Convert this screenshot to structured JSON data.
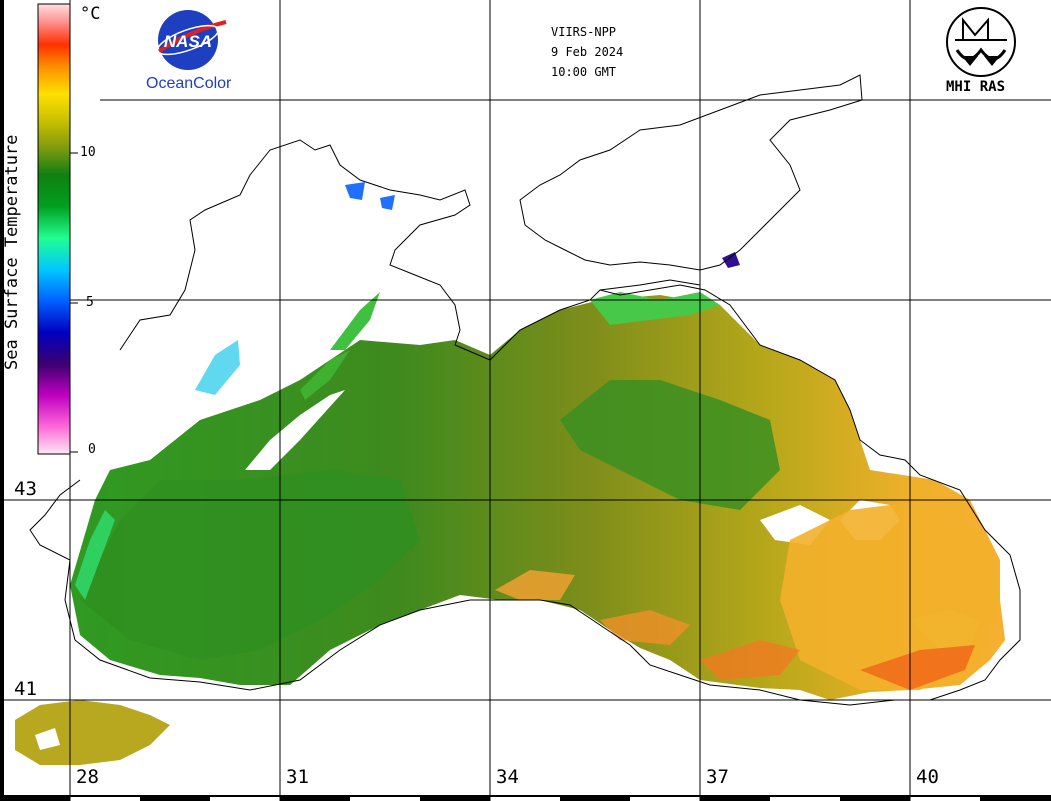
{
  "header": {
    "sensor": "VIIRS-NPP",
    "date": "9 Feb 2024",
    "time": "10:00 GMT"
  },
  "logos": {
    "nasa_mark": "NASA",
    "nasa_program": "OceanColor",
    "institute": "MHI RAS"
  },
  "colorbar": {
    "title": "Sea Surface Temperature",
    "unit": "°C",
    "ticks": [
      "10",
      "5",
      "0"
    ],
    "colors": [
      "#ffe8f4",
      "#ff6ad8",
      "#c000c0",
      "#3c0070",
      "#0000c0",
      "#0060ff",
      "#00c8ff",
      "#20ff90",
      "#00a020",
      "#108010",
      "#7f9a10",
      "#c8c000",
      "#ffe000",
      "#ff9000",
      "#ff3000",
      "#ff9090",
      "#ffe0e0"
    ]
  },
  "grid": {
    "longitude_labels": [
      "28",
      "31",
      "34",
      "37",
      "40"
    ],
    "latitude_labels": [
      "43",
      "41"
    ]
  },
  "colors": {
    "cold_green": "#2e8a1e",
    "mid_olive": "#8f9418",
    "warm_yellow": "#d8c814",
    "hot_orange": "#f0a020",
    "coastline": "#000000"
  }
}
